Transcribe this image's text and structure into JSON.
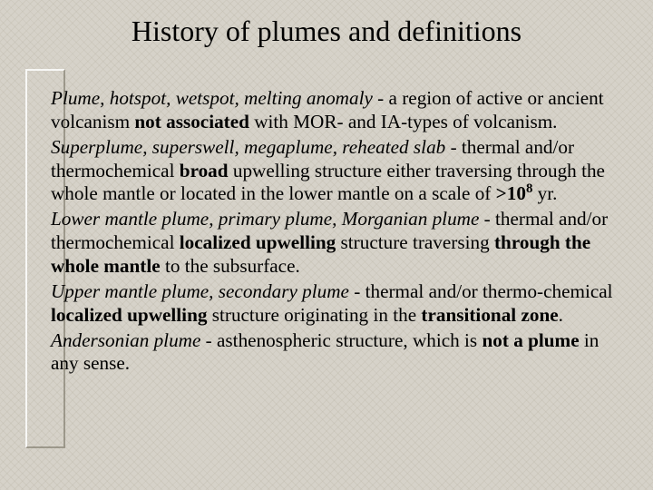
{
  "background_color": "#d6d2c9",
  "text_color": "#000000",
  "font_family": "Times New Roman",
  "title": {
    "text": "History of plumes and definitions",
    "fontsize": 32
  },
  "definitions": [
    {
      "term": "Plume, hotspot, wetspot, melting anomaly",
      "sep": " - ",
      "body_parts": [
        {
          "t": "a region of active or ancient volcanism ",
          "b": false
        },
        {
          "t": "not associated",
          "b": true
        },
        {
          "t": " with MOR- and IA-types of volcanism.",
          "b": false
        }
      ]
    },
    {
      "term": "Superplume, superswell, megaplume, reheated slab",
      "sep": " - ",
      "body_parts": [
        {
          "t": "thermal and/or thermochemical ",
          "b": false
        },
        {
          "t": "broad",
          "b": true
        },
        {
          "t": " upwelling structure either traversing through the whole mantle or located in the lower mantle on a scale of ",
          "b": false
        },
        {
          "t": ">10",
          "b": true
        },
        {
          "t": "8",
          "b": true,
          "sup": true
        },
        {
          "t": " yr.",
          "b": false
        }
      ]
    },
    {
      "term": "Lower mantle plume, primary plume, Morganian plume",
      "sep": " - ",
      "body_parts": [
        {
          "t": "thermal and/or thermochemical ",
          "b": false
        },
        {
          "t": "localized upwelling",
          "b": true
        },
        {
          "t": " structure traversing ",
          "b": false
        },
        {
          "t": "through the whole mantle",
          "b": true
        },
        {
          "t": " to the subsurface.",
          "b": false
        }
      ]
    },
    {
      "term": "Upper mantle plume, secondary plume",
      "sep": " - ",
      "body_parts": [
        {
          "t": "thermal and/or thermo-chemical ",
          "b": false
        },
        {
          "t": "localized upwelling",
          "b": true
        },
        {
          "t": " structure originating in the ",
          "b": false
        },
        {
          "t": "transitional zone",
          "b": true
        },
        {
          "t": ".",
          "b": false
        }
      ]
    },
    {
      "term": "Andersonian plume",
      "sep": " - ",
      "body_parts": [
        {
          "t": "asthenospheric structure, which is ",
          "b": false
        },
        {
          "t": "not a plume",
          "b": true
        },
        {
          "t": " in any sense.",
          "b": false
        }
      ]
    }
  ],
  "body_fontsize": 21.2,
  "line_height": 1.22
}
